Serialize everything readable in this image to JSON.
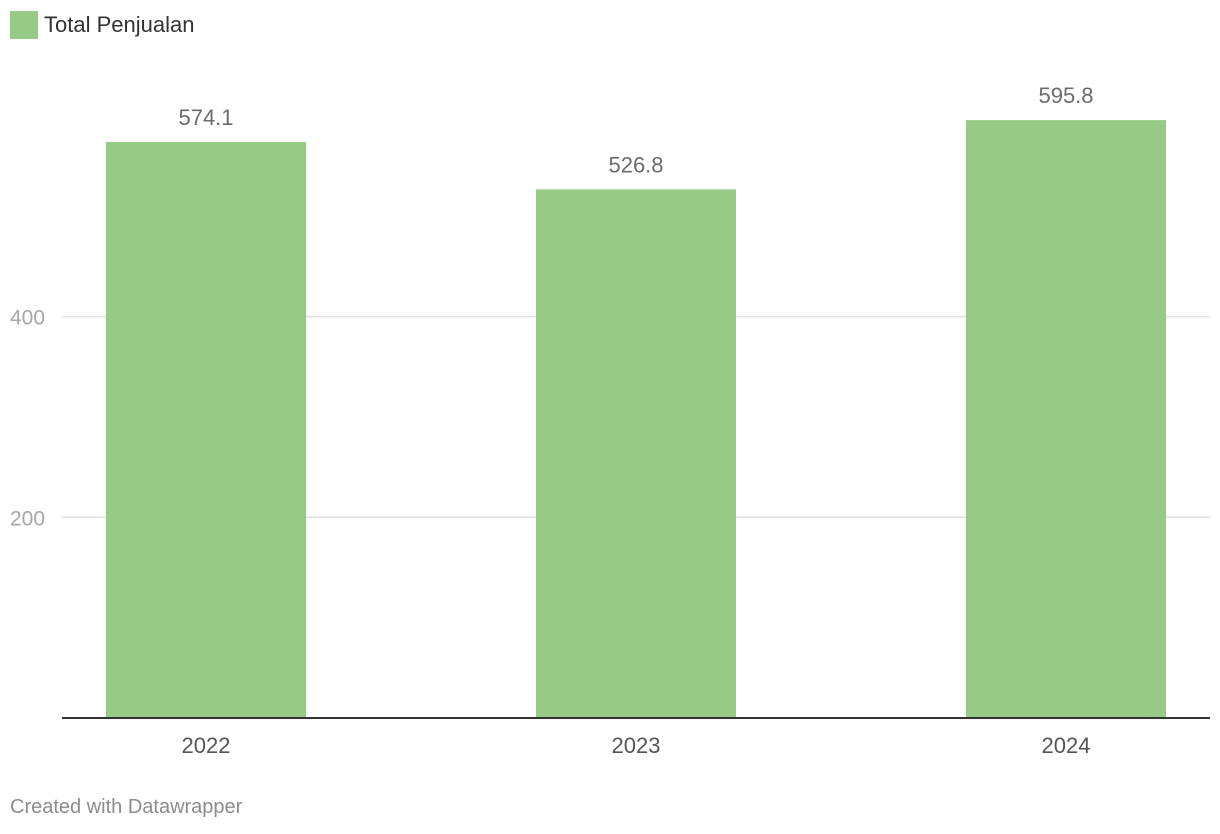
{
  "legend": {
    "label": "Total Penjualan"
  },
  "credit": "Created with Datawrapper",
  "colors": {
    "bar": "#97cb85",
    "grid": "#e0e0e0",
    "baseline": "#333333"
  },
  "chart_data": {
    "type": "bar",
    "categories": [
      "2022",
      "2023",
      "2024"
    ],
    "series": [
      {
        "name": "Total Penjualan",
        "values": [
          574.1,
          526.8,
          595.8
        ]
      }
    ],
    "yticks": [
      200,
      400
    ],
    "ylim": [
      0,
      600
    ],
    "grid": true,
    "legend_position": "top-left",
    "data_labels": true
  }
}
